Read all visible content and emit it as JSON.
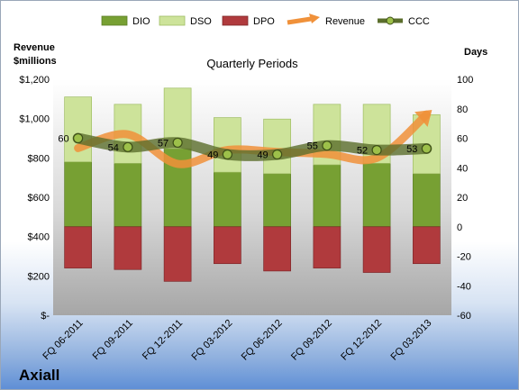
{
  "chart_data": {
    "type": "bar",
    "title": "Quarterly Periods",
    "brand": "Axiall",
    "left_axis": {
      "title_line1": "Revenue",
      "title_line2": "$millions",
      "range": [
        0,
        1200
      ],
      "ticks": [
        0,
        200,
        400,
        600,
        800,
        1000,
        1200
      ],
      "tick_labels": [
        "$-",
        "$200",
        "$400",
        "$600",
        "$800",
        "$1,000",
        "$1,200"
      ]
    },
    "right_axis": {
      "title": "Days",
      "range": [
        -60,
        100
      ],
      "ticks": [
        -60,
        -40,
        -20,
        0,
        20,
        40,
        60,
        80,
        100
      ],
      "tick_labels": [
        "-60",
        "-40",
        "-20",
        "0",
        "20",
        "40",
        "60",
        "80",
        "100"
      ]
    },
    "categories": [
      "FQ 06-2011",
      "FQ 09-2011",
      "FQ 12-2011",
      "FQ 03-2012",
      "FQ 06-2012",
      "FQ 09-2012",
      "FQ 12-2012",
      "FQ 03-2013"
    ],
    "legend": [
      "DIO",
      "DSO",
      "DPO",
      "Revenue",
      "CCC"
    ],
    "colors": {
      "DIO": "#77a033",
      "DSO": "#cde39a",
      "DPO": "#b03a3d",
      "Revenue": "#f0913a",
      "CCC": "#5b6e2c"
    },
    "series": [
      {
        "name": "DIO",
        "axis": "right",
        "values": [
          44,
          43,
          53,
          37,
          36,
          42,
          43,
          36
        ]
      },
      {
        "name": "DSO",
        "axis": "right",
        "values": [
          44,
          40,
          41,
          37,
          37,
          41,
          40,
          40
        ]
      },
      {
        "name": "DPO",
        "axis": "right",
        "values": [
          -28,
          -29,
          -37,
          -25,
          -30,
          -28,
          -31,
          -25
        ]
      },
      {
        "name": "Revenue",
        "axis": "left",
        "values": [
          850,
          920,
          770,
          840,
          830,
          820,
          800,
          1020
        ]
      },
      {
        "name": "CCC",
        "axis": "right",
        "values": [
          60,
          54,
          57,
          49,
          49,
          55,
          52,
          53
        ]
      }
    ],
    "data_labels": [
      "60",
      "54",
      "57",
      "49",
      "49",
      "55",
      "52",
      "53"
    ],
    "grid": false,
    "legend_position": "top"
  }
}
